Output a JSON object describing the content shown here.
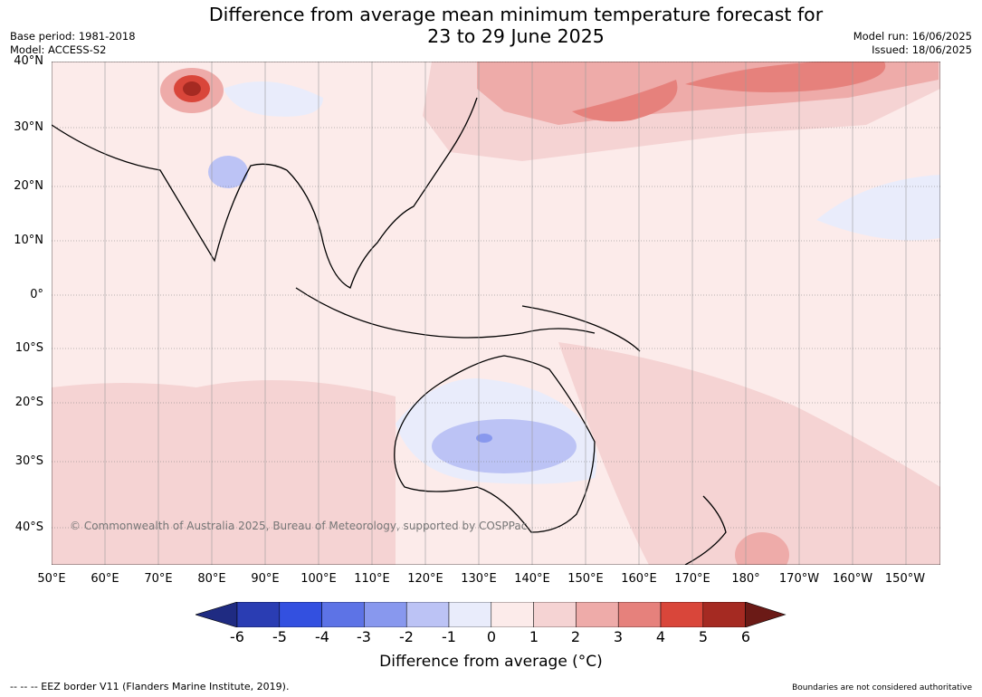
{
  "header": {
    "title_line1": "Difference from average mean minimum temperature forecast for",
    "title_line2": "23 to 29 June 2025",
    "base_period": "Base period: 1981-2018",
    "model": "Model: ACCESS-S2",
    "model_run": "Model run: 16/06/2025",
    "issued": "Issued: 18/06/2025"
  },
  "map": {
    "lat_labels": [
      "40°N",
      "30°N",
      "20°N",
      "10°N",
      "0°",
      "10°S",
      "20°S",
      "30°S",
      "40°S"
    ],
    "lon_labels": [
      "50°E",
      "60°E",
      "70°E",
      "80°E",
      "90°E",
      "100°E",
      "110°E",
      "120°E",
      "130°E",
      "140°E",
      "150°E",
      "160°E",
      "170°E",
      "180°",
      "170°W",
      "160°W",
      "150°W"
    ],
    "copyright": "© Commonwealth of Australia 2025, Bureau of Meteorology, supported by COSPPac"
  },
  "colorbar": {
    "ticks": [
      "-6",
      "-5",
      "-4",
      "-3",
      "-2",
      "-1",
      "0",
      "1",
      "2",
      "3",
      "4",
      "5",
      "6"
    ],
    "colors": [
      "#1f2b82",
      "#2a3db3",
      "#3350e0",
      "#5d73e6",
      "#8898ee",
      "#bcc3f5",
      "#e9ecfb",
      "#fcebea",
      "#f5d3d3",
      "#eeaba9",
      "#e6817c",
      "#d9463a",
      "#a52a22",
      "#6b1a16"
    ],
    "label": "Difference from average (°C)"
  },
  "footer": {
    "eez_note": "--  --  -- EEZ border V11 (Flanders Marine Institute, 2019).",
    "disclaimer": "Boundaries are not considered authoritative"
  }
}
